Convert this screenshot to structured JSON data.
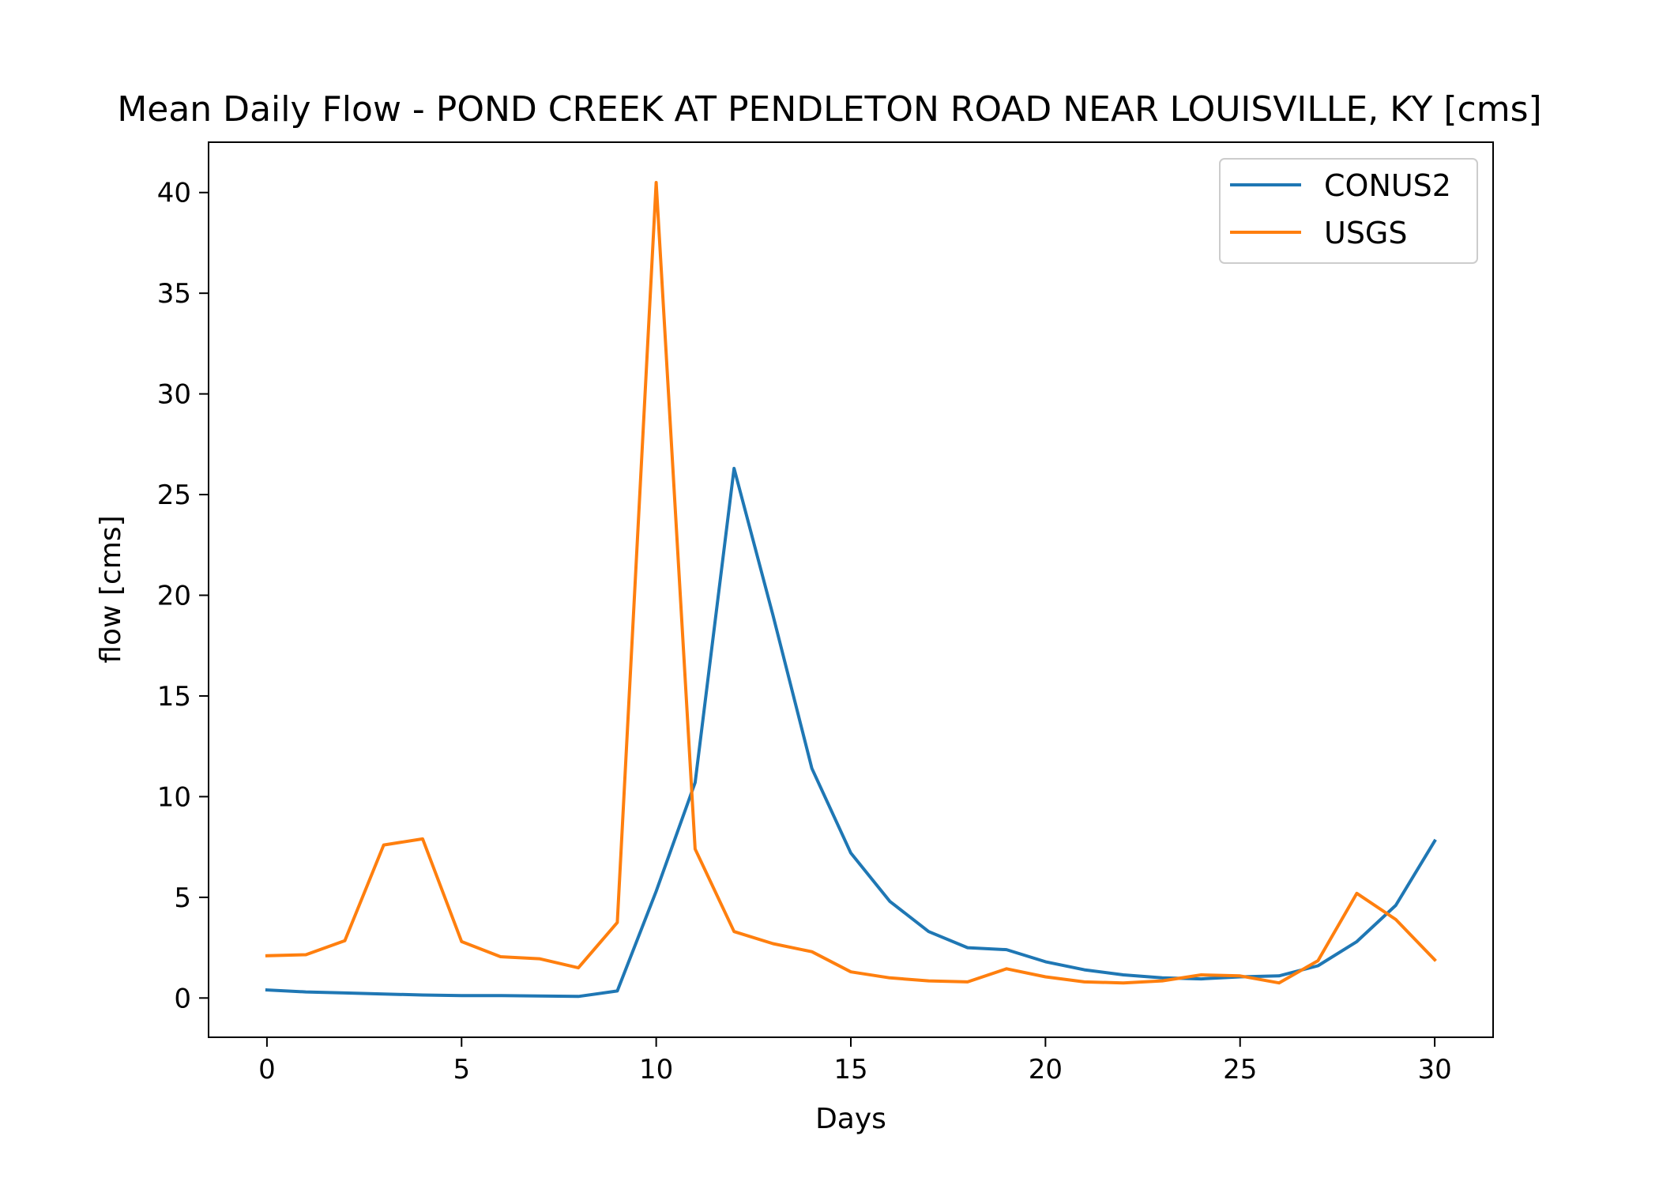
{
  "chart_data": {
    "type": "line",
    "title": "Mean Daily Flow - POND CREEK AT PENDLETON ROAD NEAR LOUISVILLE, KY [cms]",
    "xlabel": "Days",
    "ylabel": "flow [cms]",
    "xlim": [
      -1.5,
      31.5
    ],
    "ylim": [
      -1.95,
      42.5
    ],
    "x_ticks": [
      0,
      5,
      10,
      15,
      20,
      25,
      30
    ],
    "y_ticks": [
      0,
      5,
      10,
      15,
      20,
      25,
      30,
      35,
      40
    ],
    "grid": false,
    "legend": "top-right",
    "x": [
      0,
      1,
      2,
      3,
      4,
      5,
      6,
      7,
      8,
      9,
      10,
      11,
      12,
      13,
      14,
      15,
      16,
      17,
      18,
      19,
      20,
      21,
      22,
      23,
      24,
      25,
      26,
      27,
      28,
      29,
      30
    ],
    "series": [
      {
        "name": "CONUS2",
        "color": "#1f77b4",
        "values": [
          0.4,
          0.3,
          0.25,
          0.2,
          0.15,
          0.12,
          0.12,
          0.1,
          0.08,
          0.35,
          5.3,
          10.7,
          26.3,
          19.0,
          11.4,
          7.2,
          4.8,
          3.3,
          2.5,
          2.4,
          1.8,
          1.4,
          1.15,
          1.0,
          0.95,
          1.05,
          1.1,
          1.6,
          2.8,
          4.6,
          7.8
        ]
      },
      {
        "name": "USGS",
        "color": "#ff7f0e",
        "values": [
          2.1,
          2.15,
          2.85,
          7.6,
          7.9,
          2.8,
          2.05,
          1.95,
          1.5,
          3.75,
          40.5,
          7.4,
          3.3,
          2.7,
          2.3,
          1.3,
          1.0,
          0.85,
          0.8,
          1.45,
          1.05,
          0.8,
          0.75,
          0.85,
          1.15,
          1.1,
          0.75,
          1.85,
          5.2,
          3.9,
          1.9
        ]
      }
    ]
  }
}
